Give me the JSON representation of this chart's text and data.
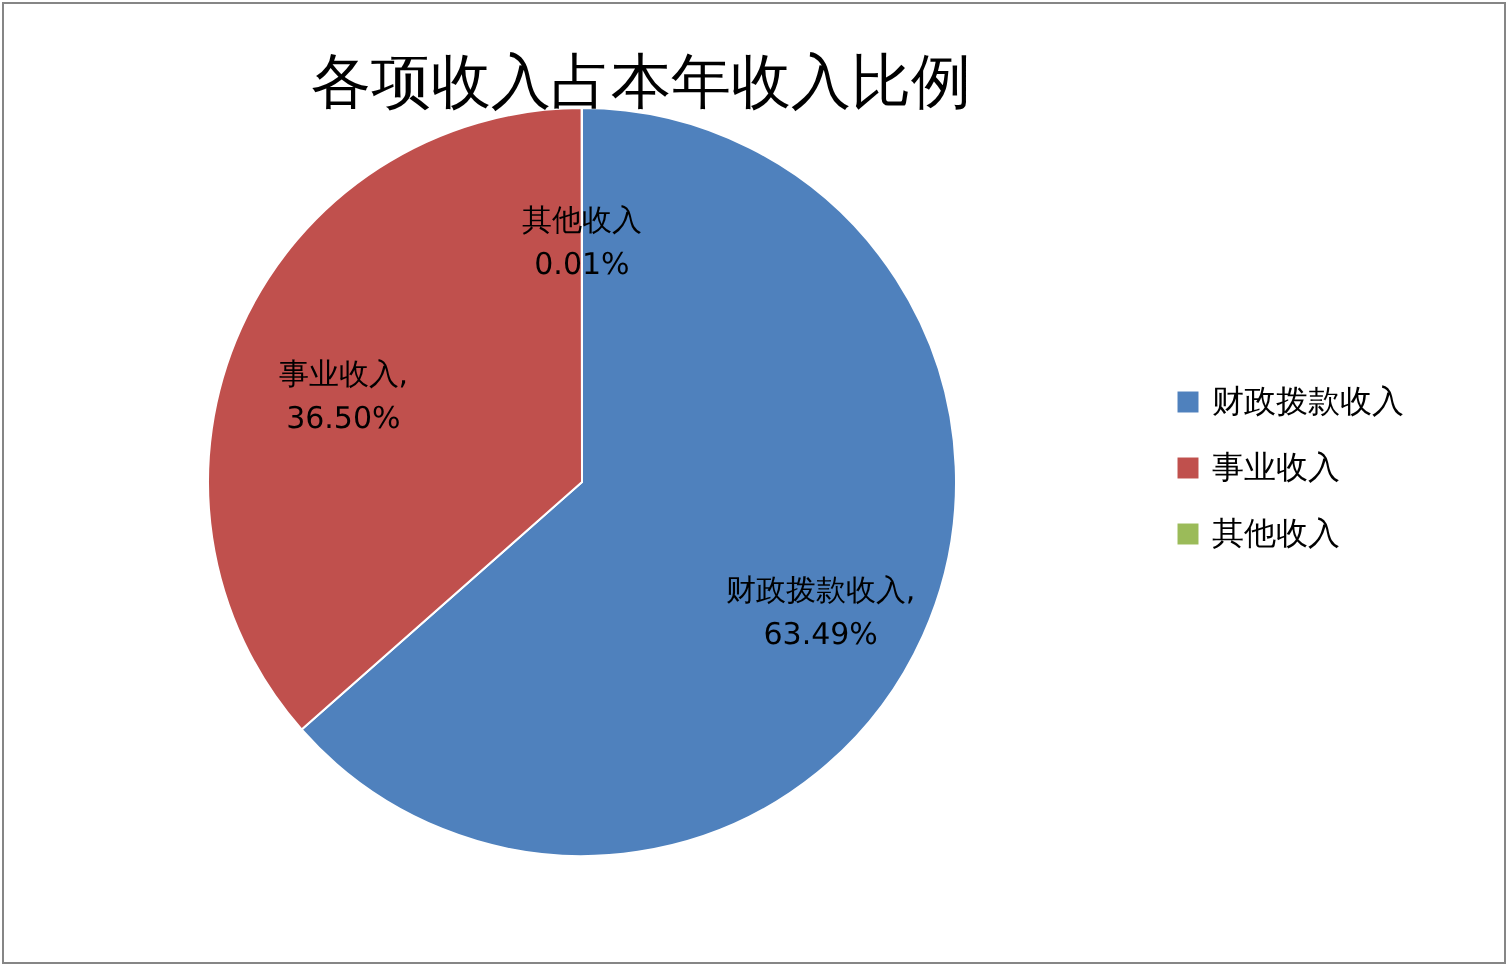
{
  "chart_data": {
    "type": "pie",
    "title": "各项收入占本年收入比例",
    "categories": [
      "财政拨款收入",
      "事业收入",
      "其他收入"
    ],
    "values": [
      63.49,
      36.5,
      0.01
    ],
    "colors": [
      "#4f81bd",
      "#c0504d",
      "#9bbb59"
    ],
    "value_labels": [
      "财政拨款收入,\n63.49%",
      "事业收入,\n36.50%",
      "其他收入\n0.01%"
    ],
    "legend": "right"
  }
}
